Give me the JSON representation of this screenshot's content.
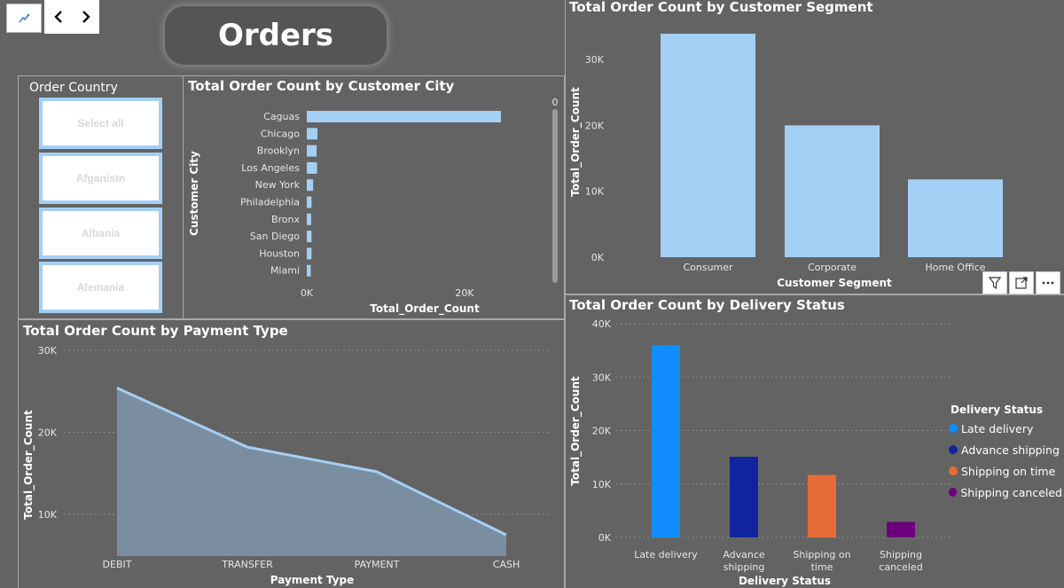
{
  "page_title": "Orders",
  "nav": {
    "back_icon": "chevron-left-icon",
    "forward_icon": "chevron-right-icon",
    "page_icon": "report-icon"
  },
  "slicer": {
    "title": "Order Country",
    "items": [
      "Select all",
      "Afganist­n",
      "Albania",
      "Alemania"
    ]
  },
  "colors": {
    "background": "#636363",
    "bar_light": "#a4cff5",
    "area_fill": "#7b8ea0",
    "area_line": "#a4cff5",
    "late": "#118dff",
    "advance": "#12239e",
    "on_time": "#e66c37",
    "canceled": "#6b007b"
  },
  "city_chart": {
    "title": "Total Order Count by Customer City",
    "xlabel": "Total_Order_Count",
    "ylabel": "Customer City",
    "x_ticks": [
      "0K",
      "20K"
    ],
    "scroll_label": "0"
  },
  "segment_chart": {
    "title": "Total Order Count by Customer Segment",
    "xlabel": "Customer Segment",
    "ylabel": "Total_Order_Count",
    "y_ticks": [
      "0K",
      "10K",
      "20K",
      "30K"
    ]
  },
  "payment_chart": {
    "title": "Total Order Count by Payment Type",
    "xlabel": "Payment Type",
    "ylabel": "Total_Order_Count",
    "y_ticks": [
      "10K",
      "20K",
      "30K"
    ]
  },
  "delivery_chart": {
    "title": "Total Order Count by Delivery Status",
    "xlabel": "Delivery Status",
    "ylabel": "Total_Order_Count",
    "y_ticks": [
      "0K",
      "10K",
      "20K",
      "30K",
      "40K"
    ],
    "legend_title": "Delivery Status"
  },
  "visual_header": {
    "filter_icon": "filter-icon",
    "focus_icon": "focus-mode-icon",
    "more_icon": "more-options-icon"
  },
  "chart_data": [
    {
      "type": "bar",
      "orientation": "horizontal",
      "title": "Total Order Count by Customer City",
      "xlabel": "Total_Order_Count",
      "ylabel": "Customer City",
      "categories": [
        "Caguas",
        "Chicago",
        "Brooklyn",
        "Los Angeles",
        "New York",
        "Philadelphia",
        "Bronx",
        "San Diego",
        "Houston",
        "Miami"
      ],
      "values": [
        24600,
        1350,
        1250,
        1300,
        800,
        600,
        550,
        600,
        600,
        500
      ],
      "xlim": [
        0,
        32000
      ]
    },
    {
      "type": "bar",
      "title": "Total Order Count by Customer Segment",
      "xlabel": "Customer Segment",
      "ylabel": "Total_Order_Count",
      "categories": [
        "Consumer",
        "Corporate",
        "Home Office"
      ],
      "values": [
        33900,
        20000,
        11800
      ],
      "ylim": [
        0,
        37000
      ]
    },
    {
      "type": "area",
      "title": "Total Order Count by Payment Type",
      "xlabel": "Payment Type",
      "ylabel": "Total_Order_Count",
      "categories": [
        "DEBIT",
        "TRANSFER",
        "PAYMENT",
        "CASH"
      ],
      "values": [
        25400,
        18200,
        15200,
        7500
      ],
      "ylim": [
        5000,
        31000
      ]
    },
    {
      "type": "bar",
      "title": "Total Order Count by Delivery Status",
      "xlabel": "Delivery Status",
      "ylabel": "Total_Order_Count",
      "categories": [
        "Late delivery",
        "Advance shipping",
        "Shipping on time",
        "Shipping canceled"
      ],
      "category_labels": [
        [
          "Late delivery"
        ],
        [
          "Advance",
          "shipping"
        ],
        [
          "Shipping on",
          "time"
        ],
        [
          "Shipping",
          "canceled"
        ]
      ],
      "values": [
        36000,
        15100,
        11700,
        2900
      ],
      "ylim": [
        0,
        40000
      ],
      "legend": {
        "title": "Delivery Status",
        "position": "right"
      }
    }
  ]
}
